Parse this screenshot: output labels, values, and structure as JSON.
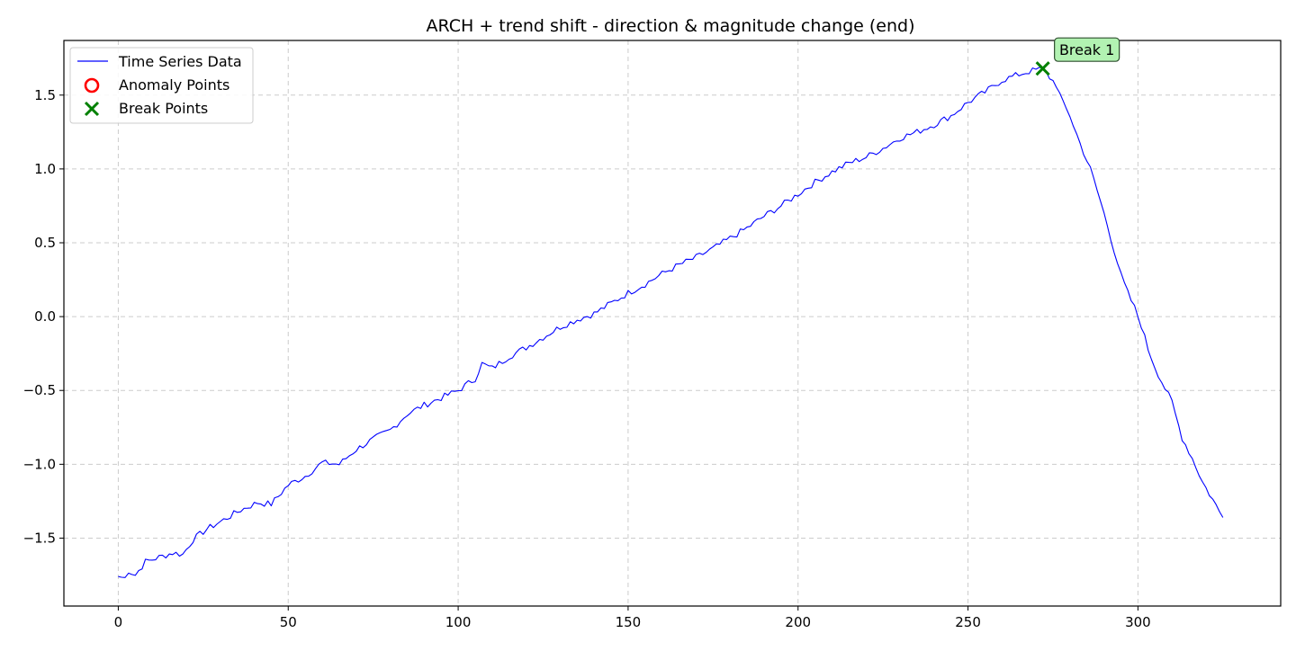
{
  "chart_data": {
    "type": "line",
    "title": "ARCH + trend shift - direction & magnitude change (end)",
    "xlabel": "",
    "ylabel": "",
    "xlim": [
      -16,
      342
    ],
    "ylim": [
      -1.96,
      1.87
    ],
    "grid": true,
    "legend_position": "top-left",
    "x_ticks": [
      0,
      50,
      100,
      150,
      200,
      250,
      300
    ],
    "y_ticks": [
      -1.5,
      -1.0,
      -0.5,
      0.0,
      0.5,
      1.0,
      1.5
    ],
    "y_tick_labels": [
      "−1.5",
      "−1.0",
      "−0.5",
      "0.0",
      "0.5",
      "1.0",
      "1.5"
    ],
    "legend": [
      {
        "label": "Time Series Data",
        "marker": "line",
        "color": "#0000ff"
      },
      {
        "label": "Anomaly Points",
        "marker": "circle",
        "color": "#ff0000"
      },
      {
        "label": "Break Points",
        "marker": "x",
        "color": "#008000"
      }
    ],
    "series": [
      {
        "name": "Time Series Data",
        "color": "#0000ff",
        "x_start": 0,
        "x_step": 1,
        "anchors": [
          [
            0,
            -1.76
          ],
          [
            2,
            -1.77
          ],
          [
            3,
            -1.72
          ],
          [
            5,
            -1.75
          ],
          [
            8,
            -1.66
          ],
          [
            12,
            -1.63
          ],
          [
            16,
            -1.6
          ],
          [
            19,
            -1.61
          ],
          [
            22,
            -1.51
          ],
          [
            26,
            -1.44
          ],
          [
            30,
            -1.39
          ],
          [
            36,
            -1.31
          ],
          [
            41,
            -1.26
          ],
          [
            45,
            -1.27
          ],
          [
            50,
            -1.14
          ],
          [
            55,
            -1.08
          ],
          [
            60,
            -0.99
          ],
          [
            65,
            -1.0
          ],
          [
            70,
            -0.9
          ],
          [
            75,
            -0.83
          ],
          [
            80,
            -0.77
          ],
          [
            85,
            -0.66
          ],
          [
            90,
            -0.6
          ],
          [
            95,
            -0.55
          ],
          [
            100,
            -0.5
          ],
          [
            105,
            -0.42
          ],
          [
            107,
            -0.32
          ],
          [
            110,
            -0.35
          ],
          [
            115,
            -0.27
          ],
          [
            120,
            -0.21
          ],
          [
            125,
            -0.14
          ],
          [
            130,
            -0.07
          ],
          [
            135,
            -0.02
          ],
          [
            140,
            0.02
          ],
          [
            145,
            0.09
          ],
          [
            150,
            0.16
          ],
          [
            155,
            0.22
          ],
          [
            160,
            0.29
          ],
          [
            165,
            0.35
          ],
          [
            170,
            0.4
          ],
          [
            175,
            0.46
          ],
          [
            180,
            0.53
          ],
          [
            185,
            0.6
          ],
          [
            190,
            0.68
          ],
          [
            195,
            0.75
          ],
          [
            200,
            0.83
          ],
          [
            205,
            0.91
          ],
          [
            210,
            0.98
          ],
          [
            215,
            1.04
          ],
          [
            220,
            1.08
          ],
          [
            225,
            1.14
          ],
          [
            230,
            1.21
          ],
          [
            235,
            1.25
          ],
          [
            240,
            1.3
          ],
          [
            245,
            1.36
          ],
          [
            250,
            1.45
          ],
          [
            255,
            1.52
          ],
          [
            260,
            1.6
          ],
          [
            265,
            1.64
          ],
          [
            268,
            1.66
          ],
          [
            272,
            1.68
          ],
          [
            274,
            1.62
          ],
          [
            276,
            1.57
          ],
          [
            278,
            1.44
          ],
          [
            280,
            1.36
          ],
          [
            283,
            1.17
          ],
          [
            286,
            1.0
          ],
          [
            289,
            0.78
          ],
          [
            291,
            0.62
          ],
          [
            293,
            0.45
          ],
          [
            295,
            0.28
          ],
          [
            297,
            0.16
          ],
          [
            299,
            0.06
          ],
          [
            301,
            -0.06
          ],
          [
            303,
            -0.22
          ],
          [
            305,
            -0.34
          ],
          [
            307,
            -0.44
          ],
          [
            310,
            -0.58
          ],
          [
            313,
            -0.82
          ],
          [
            316,
            -0.96
          ],
          [
            319,
            -1.12
          ],
          [
            322,
            -1.24
          ],
          [
            325,
            -1.36
          ]
        ]
      }
    ],
    "anomaly_points": [],
    "break_points": [
      {
        "x": 272,
        "y": 1.68,
        "label": "Break 1"
      }
    ]
  }
}
